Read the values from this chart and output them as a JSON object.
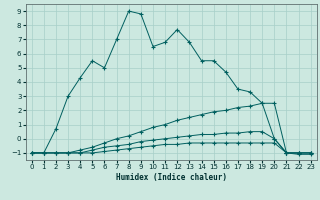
{
  "xlabel": "Humidex (Indice chaleur)",
  "xlim": [
    -0.5,
    23.5
  ],
  "ylim": [
    -1.5,
    9.5
  ],
  "yticks": [
    -1,
    0,
    1,
    2,
    3,
    4,
    5,
    6,
    7,
    8,
    9
  ],
  "xticks": [
    0,
    1,
    2,
    3,
    4,
    5,
    6,
    7,
    8,
    9,
    10,
    11,
    12,
    13,
    14,
    15,
    16,
    17,
    18,
    19,
    20,
    21,
    22,
    23
  ],
  "background_color": "#cce8e0",
  "line_color": "#005f5f",
  "grid_color": "#a8cfc8",
  "lines": [
    {
      "x": [
        0,
        1,
        2,
        3,
        4,
        5,
        6,
        7,
        8,
        9,
        10,
        11,
        12,
        13,
        14,
        15,
        16,
        17,
        18,
        19,
        20,
        21,
        22,
        23
      ],
      "y": [
        -1,
        -1,
        0.7,
        3.0,
        4.3,
        5.5,
        5.0,
        7.0,
        9.0,
        8.8,
        6.5,
        6.8,
        7.7,
        6.8,
        5.5,
        5.5,
        4.7,
        3.5,
        3.3,
        2.5,
        2.5,
        -1.0,
        -1.0,
        -1.0
      ]
    },
    {
      "x": [
        0,
        1,
        2,
        3,
        4,
        5,
        6,
        7,
        8,
        9,
        10,
        11,
        12,
        13,
        14,
        15,
        16,
        17,
        18,
        19,
        20,
        21,
        22,
        23
      ],
      "y": [
        -1.0,
        -1.0,
        -1.0,
        -1.0,
        -0.8,
        -0.6,
        -0.3,
        0.0,
        0.2,
        0.5,
        0.8,
        1.0,
        1.3,
        1.5,
        1.7,
        1.9,
        2.0,
        2.2,
        2.3,
        2.5,
        0.0,
        -1.0,
        -1.0,
        -1.0
      ]
    },
    {
      "x": [
        0,
        1,
        2,
        3,
        4,
        5,
        6,
        7,
        8,
        9,
        10,
        11,
        12,
        13,
        14,
        15,
        16,
        17,
        18,
        19,
        20,
        21,
        22,
        23
      ],
      "y": [
        -1.0,
        -1.0,
        -1.0,
        -1.0,
        -1.0,
        -0.8,
        -0.6,
        -0.5,
        -0.4,
        -0.2,
        -0.1,
        0.0,
        0.1,
        0.2,
        0.3,
        0.3,
        0.4,
        0.4,
        0.5,
        0.5,
        0.0,
        -1.0,
        -1.0,
        -1.0
      ]
    },
    {
      "x": [
        0,
        1,
        2,
        3,
        4,
        5,
        6,
        7,
        8,
        9,
        10,
        11,
        12,
        13,
        14,
        15,
        16,
        17,
        18,
        19,
        20,
        21,
        22,
        23
      ],
      "y": [
        -1.0,
        -1.0,
        -1.0,
        -1.0,
        -1.0,
        -1.0,
        -0.9,
        -0.8,
        -0.7,
        -0.6,
        -0.5,
        -0.4,
        -0.4,
        -0.3,
        -0.3,
        -0.3,
        -0.3,
        -0.3,
        -0.3,
        -0.3,
        -0.3,
        -1.0,
        -1.1,
        -1.1
      ]
    }
  ]
}
